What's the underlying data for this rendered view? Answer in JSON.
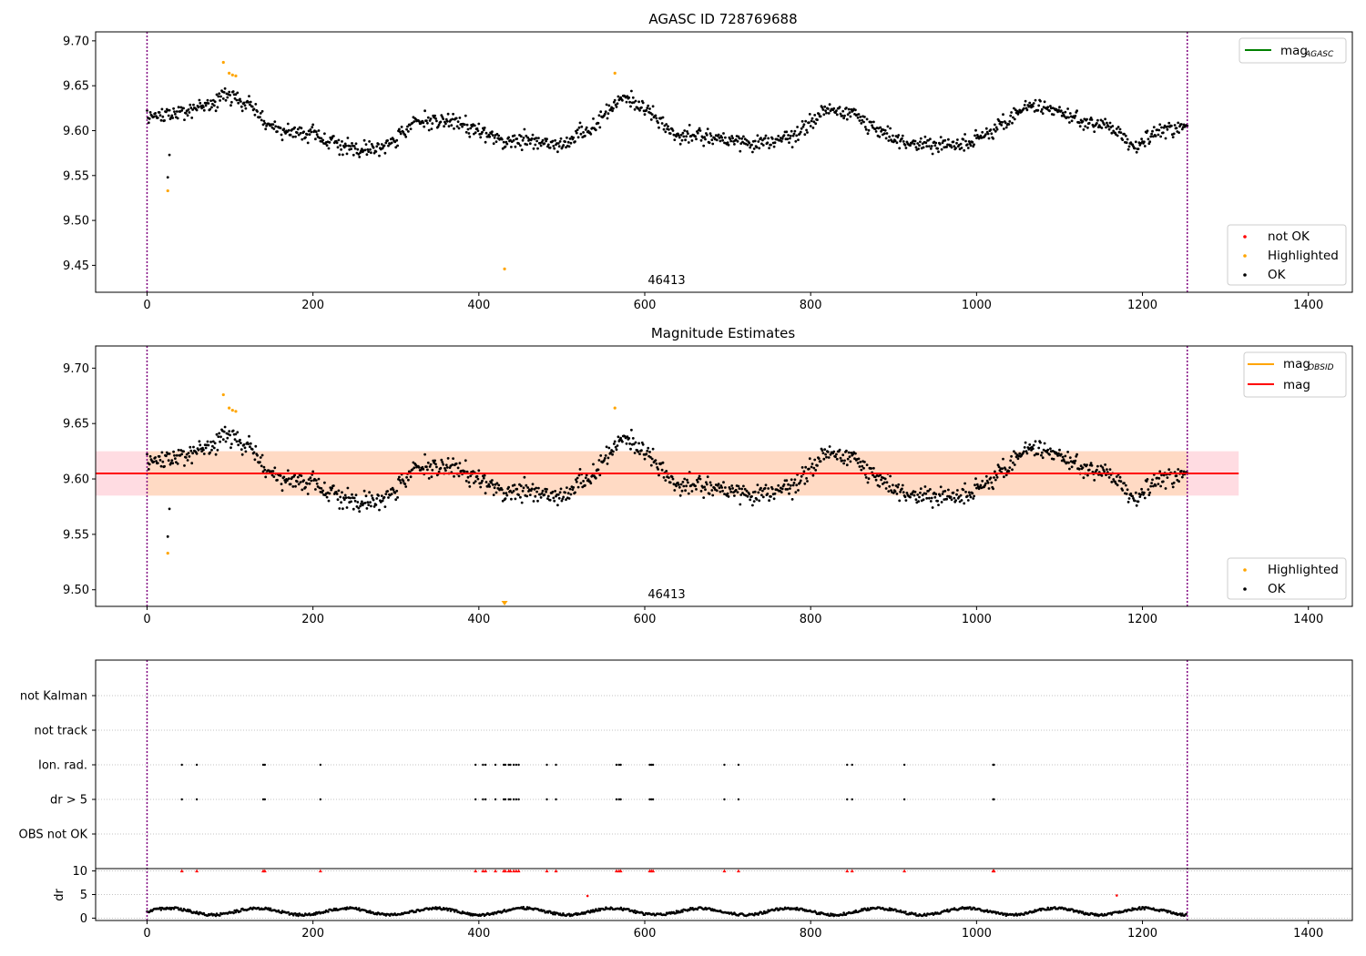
{
  "colors": {
    "ok": "#000000",
    "highlighted": "#ffa500",
    "not_ok": "#ff0000",
    "mag_agasc": "#008000",
    "mag_obsid": "#ffa500",
    "mag": "#ff0000",
    "obs_boundary": "#800080",
    "band_obsid": "#ffdab9",
    "band_mag": "#ffc0cb"
  },
  "panel1": {
    "title": "AGASC ID 728769688",
    "obsid_label": "46413",
    "legend_lines": [
      {
        "label": "mag",
        "sub": "AGASC",
        "color": "#008000"
      }
    ],
    "legend_points": [
      {
        "label": "not OK",
        "color": "#ff0000"
      },
      {
        "label": "Highlighted",
        "color": "#ffa500"
      },
      {
        "label": "OK",
        "color": "#000000"
      }
    ],
    "xticks": [
      "0",
      "200",
      "400",
      "600",
      "800",
      "1000",
      "1200",
      "1400"
    ],
    "yticks": [
      "9.45",
      "9.50",
      "9.55",
      "9.60",
      "9.65",
      "9.70"
    ]
  },
  "panel2": {
    "title": "Magnitude Estimates",
    "obsid_label": "46413",
    "legend_lines": [
      {
        "label": "mag",
        "sub": "OBSID",
        "color": "#ffa500"
      },
      {
        "label": "mag",
        "sub": "",
        "color": "#ff0000"
      }
    ],
    "legend_points": [
      {
        "label": "Highlighted",
        "color": "#ffa500"
      },
      {
        "label": "OK",
        "color": "#000000"
      }
    ],
    "xticks": [
      "0",
      "200",
      "400",
      "600",
      "800",
      "1000",
      "1200",
      "1400"
    ],
    "yticks": [
      "9.50",
      "9.55",
      "9.60",
      "9.65",
      "9.70"
    ]
  },
  "panel3": {
    "flag_labels": [
      "not Kalman",
      "not track",
      "Ion. rad.",
      "dr > 5",
      "OBS not OK"
    ],
    "dr_ylabel": "dr",
    "dr_yticks": [
      "0",
      "5",
      "10"
    ],
    "xticks": [
      "0",
      "200",
      "400",
      "600",
      "800",
      "1000",
      "1200",
      "1400"
    ]
  },
  "chart_data": [
    {
      "type": "scatter",
      "title": "AGASC ID 728769688",
      "xlim": [
        -62,
        1453
      ],
      "ylim": [
        9.42,
        9.71
      ],
      "obs_boundaries": [
        0,
        1254
      ],
      "mag_agasc": null,
      "series_ok": "~1250 black points oscillating between 9.56 and 9.65 (smooth wave), x 0-1254",
      "highlighted": [
        {
          "x": 25,
          "y": 9.533
        },
        {
          "x": 92,
          "y": 9.676
        },
        {
          "x": 99,
          "y": 9.664
        },
        {
          "x": 103,
          "y": 9.662
        },
        {
          "x": 107,
          "y": 9.661
        },
        {
          "x": 431,
          "y": 9.446
        },
        {
          "x": 564,
          "y": 9.664
        }
      ],
      "ok_outliers": [
        {
          "x": 25,
          "y": 9.548
        },
        {
          "x": 27,
          "y": 9.573
        }
      ]
    },
    {
      "type": "scatter",
      "title": "Magnitude Estimates",
      "xlim": [
        -62,
        1453
      ],
      "ylim": [
        9.485,
        9.72
      ],
      "obs_boundaries": [
        0,
        1254
      ],
      "mag": 9.605,
      "mag_band": [
        9.585,
        9.625
      ],
      "mag_band_xrange": [
        -62,
        1316
      ],
      "mag_obsid": 9.605,
      "mag_obsid_band": [
        9.585,
        9.625
      ],
      "mag_obsid_band_xrange": [
        0,
        1254
      ],
      "highlighted": [
        {
          "x": 25,
          "y": 9.533
        },
        {
          "x": 92,
          "y": 9.676
        },
        {
          "x": 99,
          "y": 9.664
        },
        {
          "x": 103,
          "y": 9.662
        },
        {
          "x": 107,
          "y": 9.661
        },
        {
          "x": 564,
          "y": 9.664
        }
      ],
      "highlighted_offscale": [
        {
          "x": 431
        }
      ]
    },
    {
      "type": "scatter",
      "flags": [
        "not Kalman",
        "not track",
        "Ion. rad.",
        "dr > 5",
        "OBS not OK"
      ],
      "flag_x": [
        42,
        60,
        140,
        142,
        209,
        396,
        405,
        408,
        420,
        430,
        432,
        436,
        438,
        442,
        445,
        448,
        482,
        493,
        566,
        569,
        571,
        606,
        608,
        610,
        696,
        713,
        844,
        850,
        913,
        1020,
        1021
      ],
      "flag_rows": [
        "Ion. rad.",
        "dr > 5"
      ],
      "dr_ylim": [
        -0.5,
        10.5
      ],
      "dr_capped_at": 10,
      "dr_baseline": "black points ~0.5-2.5 along x 0-1254",
      "dr_red_points": [
        {
          "x": 531,
          "y": 4.7
        },
        {
          "x": 1169,
          "y": 4.8
        }
      ]
    }
  ]
}
